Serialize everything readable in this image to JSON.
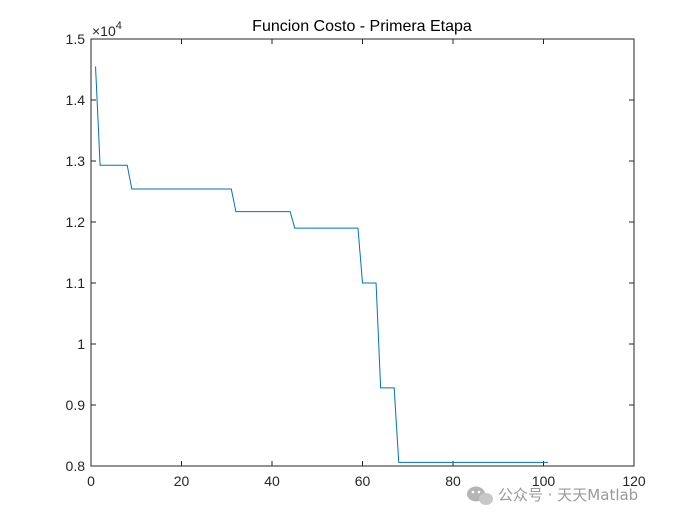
{
  "chart_data": {
    "type": "line",
    "title": "Funcion Costo - Primera Etapa",
    "xlabel": "",
    "ylabel": "",
    "xlim": [
      0,
      120
    ],
    "ylim": [
      0.8,
      1.5
    ],
    "y_exponent_label": "×10",
    "y_exponent_power": "4",
    "xticks": [
      "0",
      "20",
      "40",
      "60",
      "80",
      "100",
      "120"
    ],
    "yticks": [
      "0.8",
      "0.9",
      "1",
      "1.1",
      "1.2",
      "1.3",
      "1.4",
      "1.5"
    ],
    "grid": false,
    "line_color": "#0072BD",
    "series": [
      {
        "x": [
          1,
          2,
          2,
          8,
          8,
          9,
          9,
          31,
          31,
          32,
          32,
          44,
          44,
          45,
          45,
          59,
          59,
          60,
          60,
          63,
          63,
          64,
          64,
          67,
          67,
          68,
          68,
          101
        ],
        "y": [
          1.455,
          1.295,
          1.293,
          1.293,
          1.293,
          1.255,
          1.254,
          1.254,
          1.254,
          1.218,
          1.217,
          1.217,
          1.217,
          1.191,
          1.19,
          1.19,
          1.19,
          1.1,
          1.1,
          1.1,
          1.1,
          0.929,
          0.928,
          0.928,
          0.928,
          0.807,
          0.806,
          0.806
        ]
      }
    ]
  },
  "watermark": {
    "text": "公众号 · 天天Matlab",
    "icon": "wechat-icon"
  }
}
